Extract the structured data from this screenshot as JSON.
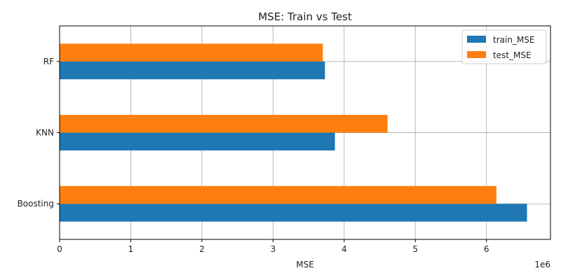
{
  "chart_data": {
    "type": "bar",
    "orientation": "horizontal",
    "title": "MSE: Train vs Test",
    "xlabel": "MSE",
    "ylabel": "",
    "x_offset_label": "1e6",
    "categories": [
      "Boosting",
      "KNN",
      "RF"
    ],
    "x_ticks": [
      0,
      1,
      2,
      3,
      4,
      5,
      6
    ],
    "xlim": [
      0,
      6.9
    ],
    "x_scale": 1000000,
    "grid": true,
    "legend_position": "top-right",
    "series": [
      {
        "name": "train_MSE",
        "color": "#1f77b4",
        "values": [
          6.57,
          3.87,
          3.73
        ]
      },
      {
        "name": "test_MSE",
        "color": "#ff7f0e",
        "values": [
          6.14,
          4.61,
          3.7
        ]
      }
    ]
  }
}
